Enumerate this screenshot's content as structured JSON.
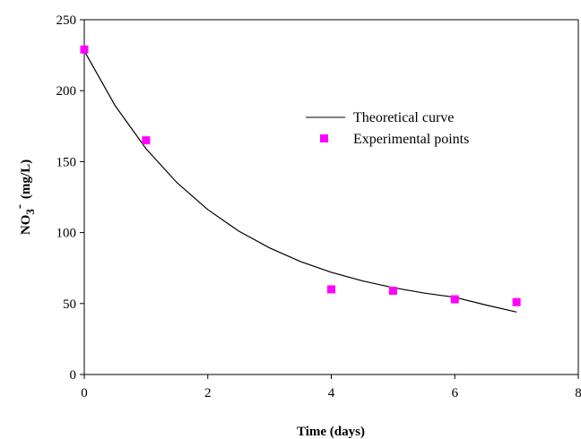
{
  "chart_data": {
    "type": "scatter",
    "xlabel": "Time (days)",
    "ylabel": {
      "main": "NO",
      "subscript": "3",
      "superscript": "-",
      "unit": "(mg/L)"
    },
    "xlim": [
      0,
      8
    ],
    "ylim": [
      0,
      250
    ],
    "x_ticks": [
      0,
      2,
      4,
      6,
      8
    ],
    "y_ticks": [
      0,
      50,
      100,
      150,
      200,
      250
    ],
    "grid": false,
    "legend_position": "top-right",
    "series": [
      {
        "name": "Theoretical curve",
        "kind": "line",
        "color": "#000000",
        "x": [
          0,
          0.5,
          1,
          1.5,
          2,
          2.5,
          3,
          3.5,
          4,
          4.5,
          5,
          5.5,
          6,
          6.5,
          7
        ],
        "y": [
          228,
          189.4,
          159.1,
          135.2,
          116.2,
          101.1,
          89.2,
          79.6,
          72.0,
          66.0,
          61.2,
          57.4,
          54.4,
          49.0,
          44.0
        ]
      },
      {
        "name": "Experimental points",
        "kind": "scatter",
        "color": "#ff00ff",
        "x": [
          0,
          1,
          4,
          5,
          6,
          7
        ],
        "y": [
          229,
          165,
          60,
          59,
          53,
          51
        ]
      }
    ]
  }
}
